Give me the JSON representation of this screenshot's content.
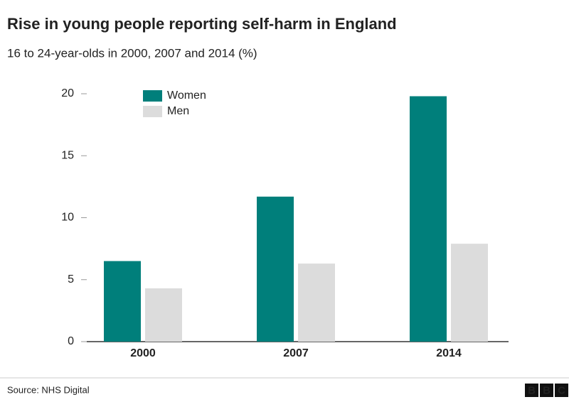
{
  "chart_data": {
    "type": "bar",
    "title": "Rise in young people reporting self-harm in England",
    "subtitle": "16 to 24-year-olds in 2000, 2007 and 2014 (%)",
    "categories": [
      "2000",
      "2007",
      "2014"
    ],
    "series": [
      {
        "name": "Women",
        "color": "#007f7b",
        "values": [
          6.5,
          11.7,
          19.8
        ]
      },
      {
        "name": "Men",
        "color": "#dcdcdc",
        "values": [
          4.3,
          6.3,
          7.9
        ]
      }
    ],
    "ylim": [
      0,
      20
    ],
    "yticks": [
      0,
      5,
      10,
      15,
      20
    ],
    "grid": false
  },
  "footer": {
    "source": "Source: NHS Digital",
    "logo": "BBC"
  }
}
